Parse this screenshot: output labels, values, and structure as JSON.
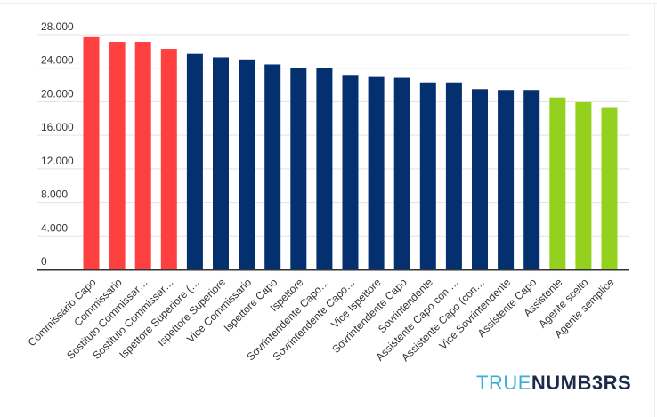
{
  "chart_data": {
    "type": "bar",
    "categories": [
      "Commissario Capo",
      "Commissario",
      "Sostituto Commissar…",
      "Sostituto Commissar…",
      "Ispettore Superiore (…",
      "Ispettore Superiore",
      "Vice Commissario",
      "Ispettore Capo",
      "Ispettore",
      "Sovrintendente Capo…",
      "Sovrintendente Capo…",
      "Vice Ispettore",
      "Sovrintendente Capo",
      "Sovrintendente",
      "Assistente Capo con …",
      "Assistente Capo (con…",
      "Vice Sovrintendente",
      "Assistente Capo",
      "Assistente",
      "Agente scelto",
      "Agente semplice"
    ],
    "values": [
      27700,
      27150,
      27150,
      26300,
      25700,
      25300,
      25050,
      24450,
      24050,
      24050,
      23200,
      22950,
      22850,
      22300,
      22300,
      21500,
      21400,
      21400,
      20500,
      19950,
      19350
    ],
    "bar_colors": [
      "#ff4040",
      "#ff4040",
      "#ff4040",
      "#ff4040",
      "#04306f",
      "#04306f",
      "#04306f",
      "#04306f",
      "#04306f",
      "#04306f",
      "#04306f",
      "#04306f",
      "#04306f",
      "#04306f",
      "#04306f",
      "#04306f",
      "#04306f",
      "#04306f",
      "#94d11e",
      "#94d11e",
      "#94d11e"
    ],
    "y_tick_labels": [
      "0",
      "4.000",
      "8.000",
      "12.000",
      "16.000",
      "20.000",
      "24.000",
      "28.000"
    ],
    "y_tick_values": [
      0,
      4000,
      8000,
      12000,
      16000,
      20000,
      24000,
      28000
    ],
    "ylim": [
      0,
      28000
    ],
    "grid": true,
    "title": "",
    "xlabel": "",
    "ylabel": ""
  },
  "branding": {
    "logo_part1": "TRUE",
    "logo_part2": "NUMB3RS"
  }
}
